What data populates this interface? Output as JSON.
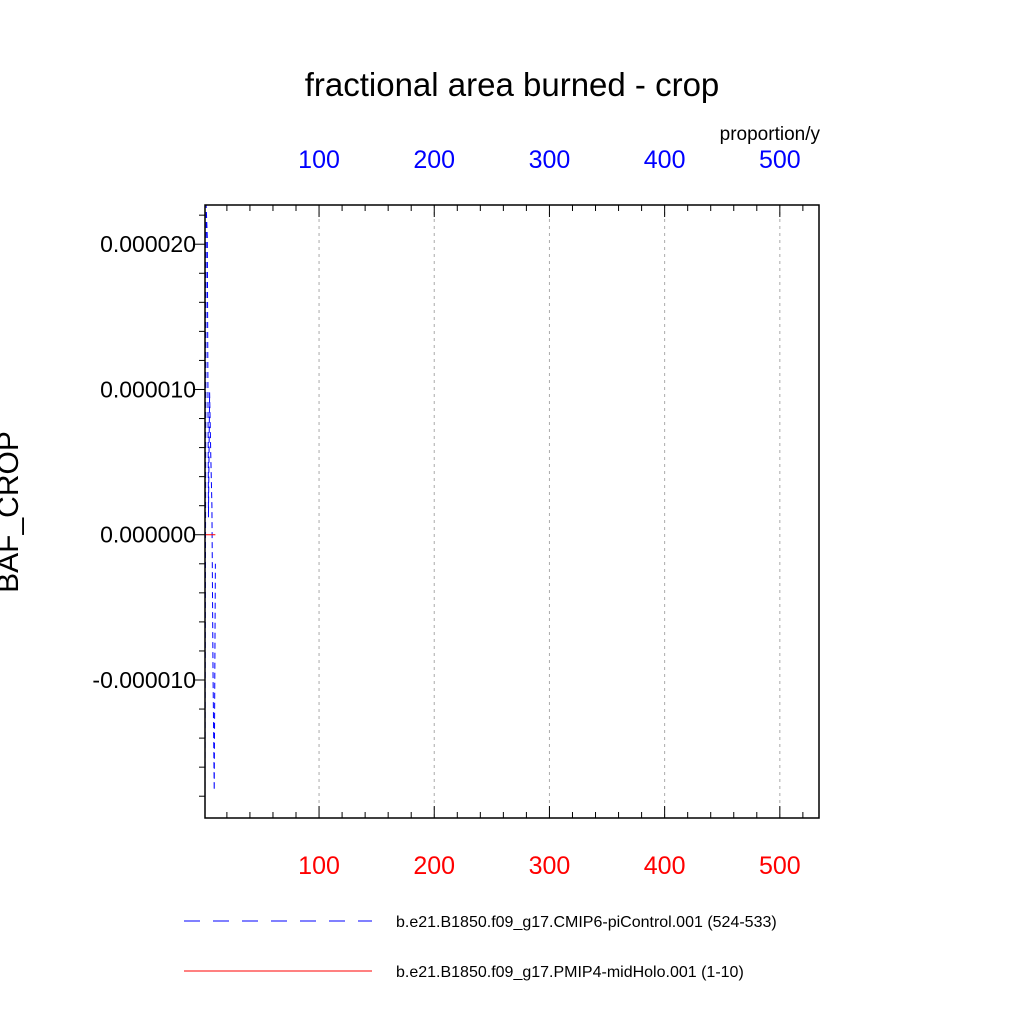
{
  "chart_data": {
    "type": "line",
    "title": "fractional area burned - crop",
    "ylabel": "BAF_CROP",
    "units": "proportion/y",
    "xlim": [
      1,
      534
    ],
    "ylim": [
      -1.95e-05,
      2.27e-05
    ],
    "grid": true,
    "x_ticks_top": [
      "100",
      "200",
      "300",
      "400",
      "500"
    ],
    "x_ticks_bottom": [
      "100",
      "200",
      "300",
      "400",
      "500"
    ],
    "x_tick_values": [
      100,
      200,
      300,
      400,
      500
    ],
    "y_ticks": [
      "-0.000010",
      "0.000000",
      "0.000010",
      "0.000020"
    ],
    "y_tick_values": [
      -1e-05,
      0,
      1e-05,
      2e-05
    ],
    "legend_position": "bottom",
    "colors": {
      "top_axis": "#0000ff",
      "bottom_axis": "#ff0000",
      "grid": "#aaaaaa"
    },
    "series": [
      {
        "name": "b.e21.B1850.f09_g17.CMIP6-piControl.001 (524-533)",
        "color": "#0000ff",
        "dash": "dashed",
        "axis": "top",
        "x": [
          1,
          2,
          3,
          4,
          5,
          6,
          7,
          8,
          9,
          10
        ],
        "y": [
          -1.95e-05,
          2.27e-05,
          2.05e-05,
          1.2e-06,
          9.8e-06,
          5.5e-06,
          2e-06,
          -9.8e-06,
          -1.76e-05,
          -2e-06
        ]
      },
      {
        "name": "b.e21.B1850.f09_g17.PMIP4-midHolo.001 (1-10)",
        "color": "#ff0000",
        "dash": "solid",
        "axis": "bottom",
        "x": [
          1,
          2,
          3,
          4,
          5,
          6,
          7,
          8,
          9,
          10
        ],
        "y": [
          0.0,
          0.0,
          0.0,
          0.0,
          0.0,
          0.0,
          0.0,
          0.0,
          0.0,
          0.0
        ]
      }
    ]
  }
}
